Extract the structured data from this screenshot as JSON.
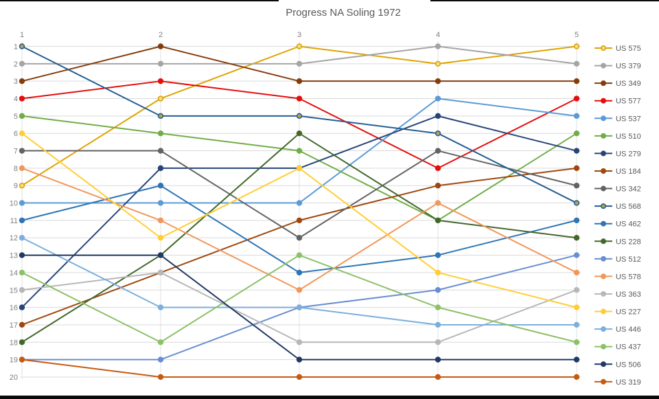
{
  "window": {
    "top_edge_color": "#0a0a0a",
    "bottom_edge_color": "#0a0a0a",
    "background": "#ffffff"
  },
  "chart_data": {
    "type": "line",
    "title": "Progress NA Soling 1972",
    "xlabel": "",
    "ylabel": "",
    "x_ticks": [
      "1",
      "2",
      "3",
      "4",
      "5"
    ],
    "y_ticks": [
      "1",
      "2",
      "3",
      "4",
      "5",
      "6",
      "7",
      "8",
      "9",
      "10",
      "11",
      "12",
      "13",
      "14",
      "15",
      "16",
      "17",
      "18",
      "19",
      "20"
    ],
    "ylim": [
      1,
      20
    ],
    "y_axis_inverted": true,
    "grid": true,
    "legend_position": "right",
    "grid_color": "#d9d9d9",
    "column_line_color": "#e2e2e2",
    "title_color": "#595959",
    "tick_color": "#7f7f7f",
    "legend_text_color": "#595959",
    "series": [
      {
        "name": "US 575",
        "color": "#dda400",
        "marker_fill": "#f3dd8a",
        "values": [
          9,
          4,
          1,
          2,
          1
        ]
      },
      {
        "name": "US 379",
        "color": "#a5a5a5",
        "values": [
          2,
          2,
          2,
          1,
          2
        ]
      },
      {
        "name": "US 349",
        "color": "#843c0c",
        "values": [
          3,
          1,
          3,
          3,
          3
        ]
      },
      {
        "name": "US 577",
        "color": "#e60d0d",
        "values": [
          4,
          3,
          4,
          8,
          4
        ]
      },
      {
        "name": "US 537",
        "color": "#5b9bd5",
        "values": [
          10,
          10,
          10,
          4,
          5
        ]
      },
      {
        "name": "US 510",
        "color": "#70ad47",
        "values": [
          5,
          6,
          7,
          11,
          6
        ]
      },
      {
        "name": "US 279",
        "color": "#264478",
        "values": [
          16,
          8,
          8,
          5,
          7
        ]
      },
      {
        "name": "US 184",
        "color": "#9e480e",
        "values": [
          17,
          14,
          11,
          9,
          8
        ]
      },
      {
        "name": "US 342",
        "color": "#636363",
        "values": [
          7,
          7,
          12,
          7,
          9
        ]
      },
      {
        "name": "US 568",
        "color": "#255e91",
        "marker_fill": "#b8a44e",
        "values": [
          1,
          5,
          5,
          6,
          10
        ]
      },
      {
        "name": "US 462",
        "color": "#2e75b6",
        "values": [
          11,
          9,
          14,
          13,
          11
        ]
      },
      {
        "name": "US 228",
        "color": "#43682b",
        "values": [
          18,
          13,
          6,
          11,
          12
        ]
      },
      {
        "name": "US 512",
        "color": "#698ed0",
        "values": [
          19,
          19,
          16,
          15,
          13
        ]
      },
      {
        "name": "US 578",
        "color": "#f1975a",
        "values": [
          8,
          11,
          15,
          10,
          14
        ]
      },
      {
        "name": "US 363",
        "color": "#b7b7b7",
        "values": [
          15,
          14,
          18,
          18,
          15
        ]
      },
      {
        "name": "US 227",
        "color": "#ffce33",
        "values": [
          6,
          12,
          8,
          14,
          16
        ]
      },
      {
        "name": "US 446",
        "color": "#7cafdd",
        "values": [
          12,
          16,
          16,
          17,
          17
        ]
      },
      {
        "name": "US 437",
        "color": "#8cc168",
        "values": [
          14,
          18,
          13,
          16,
          18
        ]
      },
      {
        "name": "US 506",
        "color": "#203864",
        "values": [
          13,
          13,
          19,
          19,
          19
        ]
      },
      {
        "name": "US 319",
        "color": "#c55a11",
        "values": [
          19,
          20,
          20,
          20,
          20
        ]
      }
    ]
  }
}
